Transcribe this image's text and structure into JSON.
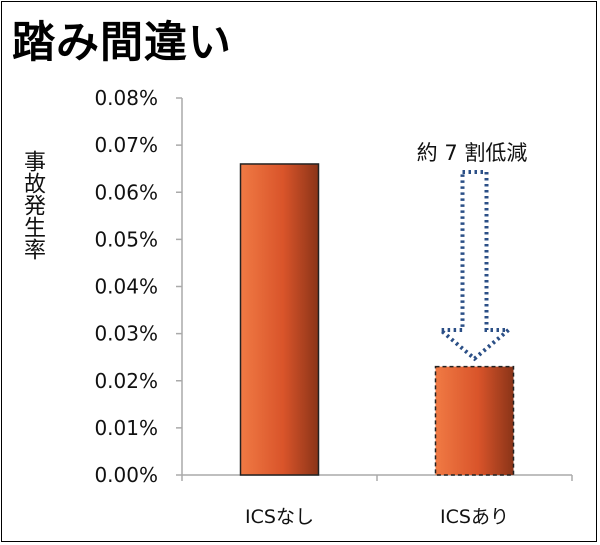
{
  "title": "踏み間違い",
  "chart_data": {
    "type": "bar",
    "title": "踏み間違い",
    "ylabel": "事故発生率",
    "xlabel": "",
    "categories": [
      "ICSなし",
      "ICSあり"
    ],
    "values": [
      0.066,
      0.023
    ],
    "ylim": [
      0,
      0.08
    ],
    "yticks": [
      0,
      0.01,
      0.02,
      0.03,
      0.04,
      0.05,
      0.06,
      0.07,
      0.08
    ],
    "ytick_labels": [
      "0.00%",
      "0.01%",
      "0.02%",
      "0.03%",
      "0.04%",
      "0.05%",
      "0.06%",
      "0.07%",
      "0.08%"
    ],
    "grid": false,
    "legend": "none",
    "bar_color": "#d9542a",
    "annotation": "約 7 割低減",
    "arrow_color": "#2b4f86"
  }
}
